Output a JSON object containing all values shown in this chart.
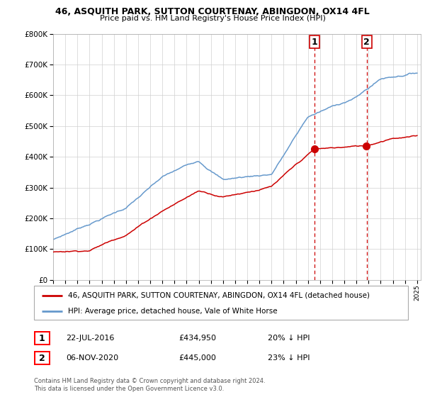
{
  "title": "46, ASQUITH PARK, SUTTON COURTENAY, ABINGDON, OX14 4FL",
  "subtitle": "Price paid vs. HM Land Registry's House Price Index (HPI)",
  "legend_line1": "46, ASQUITH PARK, SUTTON COURTENAY, ABINGDON, OX14 4FL (detached house)",
  "legend_line2": "HPI: Average price, detached house, Vale of White Horse",
  "point1_date": "22-JUL-2016",
  "point1_price": "£434,950",
  "point1_pct": "20% ↓ HPI",
  "point1_year": 2016.55,
  "point1_value": 434950,
  "point2_date": "06-NOV-2020",
  "point2_price": "£445,000",
  "point2_pct": "23% ↓ HPI",
  "point2_year": 2020.85,
  "point2_value": 445000,
  "red_color": "#cc0000",
  "blue_color": "#6699cc",
  "ylim_min": 0,
  "ylim_max": 800000,
  "xmin": 1995,
  "xmax": 2025,
  "footer": "Contains HM Land Registry data © Crown copyright and database right 2024.\nThis data is licensed under the Open Government Licence v3.0."
}
